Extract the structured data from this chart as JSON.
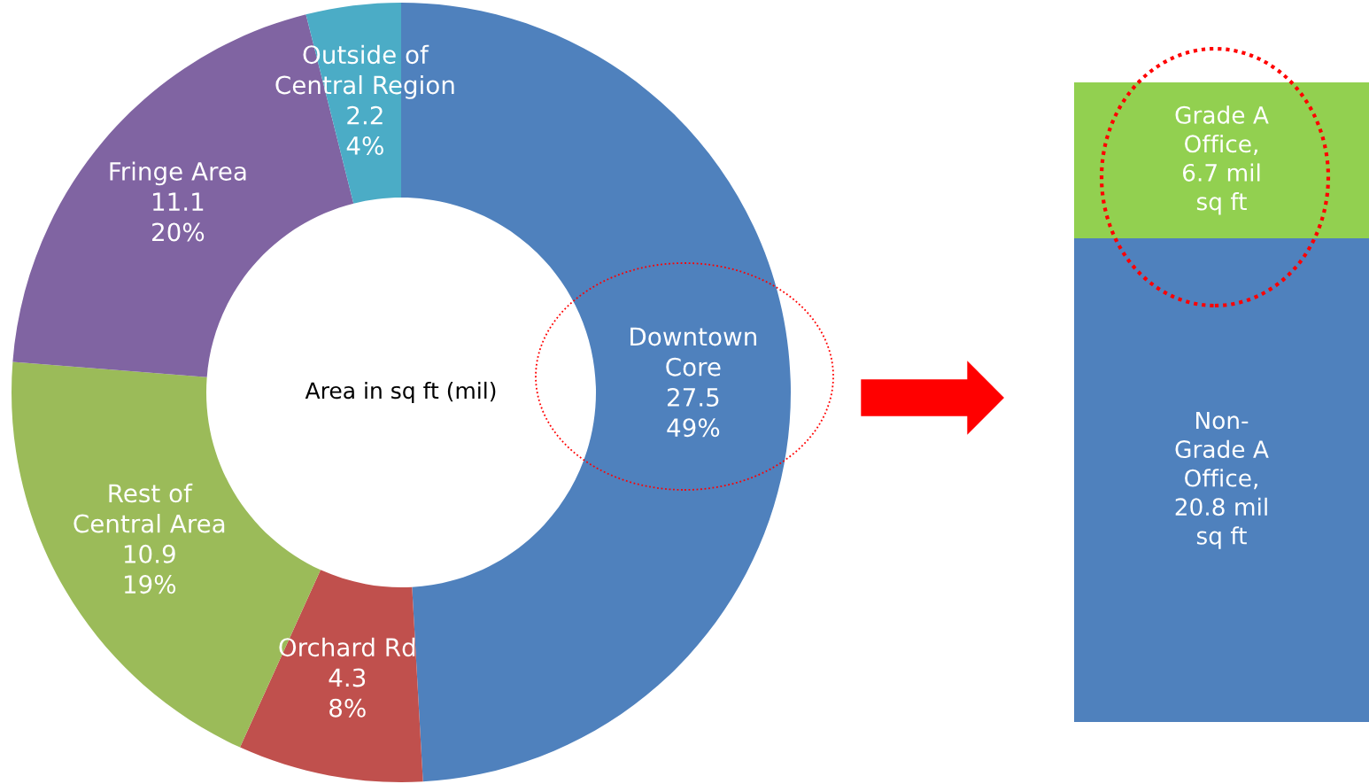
{
  "chart_data": [
    {
      "type": "donut",
      "categories": [
        "Downtown\nCore",
        "Orchard Rd",
        "Rest of\nCentral Area",
        "Fringe Area",
        "Outside of\nCentral Region"
      ],
      "values": [
        27.5,
        4.3,
        10.9,
        11.1,
        2.2
      ],
      "colors": [
        "#4f81bd",
        "#c0504d",
        "#9bbb59",
        "#8064a2",
        "#4bacc6"
      ],
      "value_labels": [
        "27.5\n49%",
        "4.3\n8%",
        "10.9\n19%",
        "11.1\n20%",
        "2.2\n4%"
      ],
      "annotations": [
        "Area in sq ft (mil)"
      ]
    },
    {
      "type": "bar",
      "stacked": true,
      "categories": [
        null
      ],
      "ylim": [
        0,
        27.5
      ],
      "tick_labels": false,
      "series": [
        {
          "color": "#4f81bd",
          "values": [
            20.8
          ],
          "value_labels": [
            "Non-\nGrade A\nOffice,\n20.8 mil\nsq ft"
          ]
        },
        {
          "color": "#92d050",
          "values": [
            6.7
          ],
          "value_labels": [
            "Grade A\nOffice,\n6.7 mil\nsq ft"
          ]
        }
      ]
    }
  ]
}
